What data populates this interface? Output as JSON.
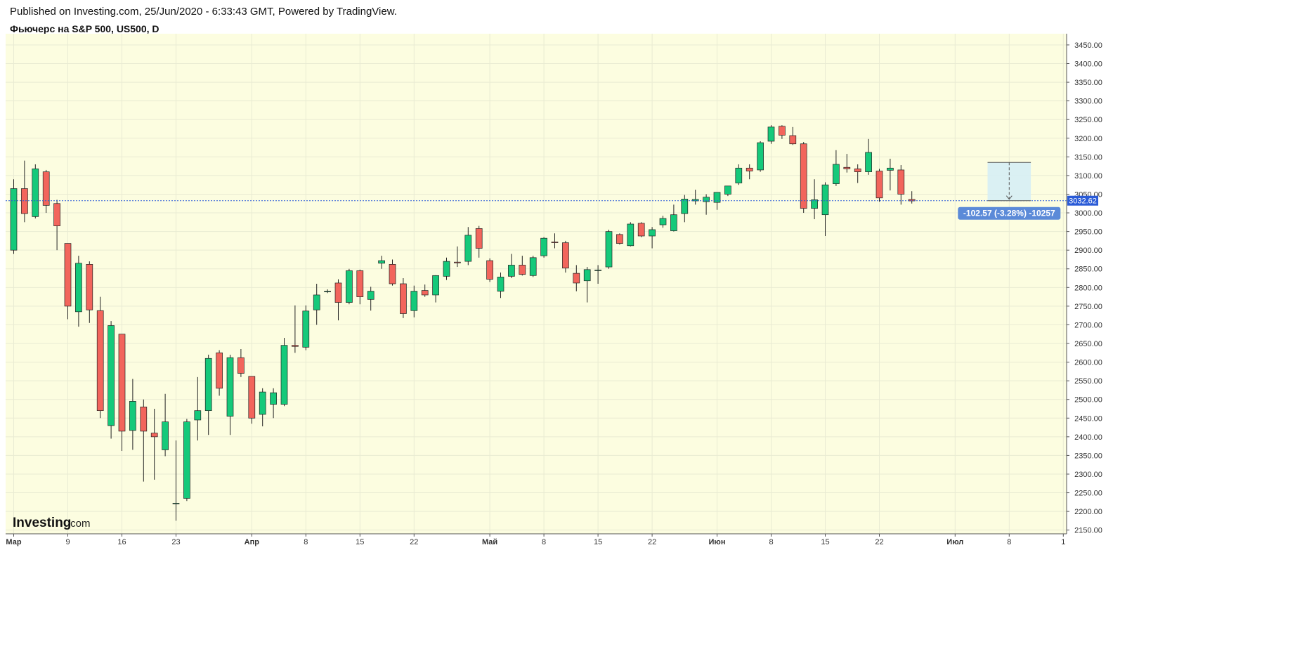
{
  "header": {
    "published": "Published on Investing.com, 25/Jun/2020 - 6:33:43 GMT, Powered by TradingView.",
    "symbol": "Фьючерс на S&P 500, US500, D"
  },
  "colors": {
    "background": "#fcfde0",
    "up": "#15c97a",
    "down": "#f2655c",
    "price_line": "#2a5bd7",
    "measure_fill": "#d6eef5",
    "measure_label": "#5b8ad8"
  },
  "current_price": {
    "value": 3032.62,
    "label": "3032.62"
  },
  "measure_label": "-102.57 (-3.28%) -10257",
  "watermark": {
    "brand": "Investing",
    "suffix": ".com"
  },
  "chart_data": {
    "type": "candlestick",
    "title": "Фьючерс на S&P 500, US500, D",
    "ylim": [
      2140,
      3480
    ],
    "grid": true,
    "y_ticks": [
      "3450.00",
      "3400.00",
      "3350.00",
      "3300.00",
      "3250.00",
      "3200.00",
      "3150.00",
      "3100.00",
      "3050.00",
      "3000.00",
      "2950.00",
      "2900.00",
      "2850.00",
      "2800.00",
      "2750.00",
      "2700.00",
      "2650.00",
      "2600.00",
      "2550.00",
      "2500.00",
      "2450.00",
      "2400.00",
      "2350.00",
      "2300.00",
      "2250.00",
      "2200.00",
      "2150.00"
    ],
    "x_ticks": [
      {
        "label": "Мар",
        "index": 0,
        "bold": true
      },
      {
        "label": "9",
        "index": 5,
        "bold": false
      },
      {
        "label": "16",
        "index": 10,
        "bold": false
      },
      {
        "label": "23",
        "index": 15,
        "bold": false
      },
      {
        "label": "Апр",
        "index": 22,
        "bold": true
      },
      {
        "label": "8",
        "index": 27,
        "bold": false
      },
      {
        "label": "15",
        "index": 32,
        "bold": false
      },
      {
        "label": "22",
        "index": 37,
        "bold": false
      },
      {
        "label": "Май",
        "index": 44,
        "bold": true
      },
      {
        "label": "8",
        "index": 49,
        "bold": false
      },
      {
        "label": "15",
        "index": 54,
        "bold": false
      },
      {
        "label": "22",
        "index": 59,
        "bold": false
      },
      {
        "label": "Июн",
        "index": 65,
        "bold": true
      },
      {
        "label": "8",
        "index": 70,
        "bold": false
      },
      {
        "label": "15",
        "index": 75,
        "bold": false
      },
      {
        "label": "22",
        "index": 80,
        "bold": false
      },
      {
        "label": "Июл",
        "index": 87,
        "bold": true
      },
      {
        "label": "8",
        "index": 92,
        "bold": false
      },
      {
        "label": "1",
        "index": 97,
        "bold": false
      }
    ],
    "candles": [
      {
        "o": 2900,
        "h": 3090,
        "l": 2890,
        "c": 3065
      },
      {
        "o": 3065,
        "h": 3140,
        "l": 2975,
        "c": 2998
      },
      {
        "o": 2990,
        "h": 3130,
        "l": 2985,
        "c": 3118
      },
      {
        "o": 3110,
        "h": 3115,
        "l": 3000,
        "c": 3020
      },
      {
        "o": 3025,
        "h": 3035,
        "l": 2900,
        "c": 2965
      },
      {
        "o": 2918,
        "h": 2918,
        "l": 2715,
        "c": 2750
      },
      {
        "o": 2735,
        "h": 2885,
        "l": 2695,
        "c": 2865
      },
      {
        "o": 2862,
        "h": 2870,
        "l": 2705,
        "c": 2740
      },
      {
        "o": 2738,
        "h": 2775,
        "l": 2450,
        "c": 2470
      },
      {
        "o": 2430,
        "h": 2710,
        "l": 2395,
        "c": 2698
      },
      {
        "o": 2675,
        "h": 2675,
        "l": 2362,
        "c": 2415
      },
      {
        "o": 2417,
        "h": 2555,
        "l": 2365,
        "c": 2495
      },
      {
        "o": 2480,
        "h": 2500,
        "l": 2280,
        "c": 2415
      },
      {
        "o": 2410,
        "h": 2475,
        "l": 2285,
        "c": 2400
      },
      {
        "o": 2365,
        "h": 2515,
        "l": 2348,
        "c": 2440
      },
      {
        "o": 2222,
        "h": 2390,
        "l": 2175,
        "c": 2222
      },
      {
        "o": 2235,
        "h": 2448,
        "l": 2228,
        "c": 2440
      },
      {
        "o": 2445,
        "h": 2560,
        "l": 2390,
        "c": 2470
      },
      {
        "o": 2470,
        "h": 2620,
        "l": 2405,
        "c": 2610
      },
      {
        "o": 2625,
        "h": 2632,
        "l": 2510,
        "c": 2530
      },
      {
        "o": 2455,
        "h": 2620,
        "l": 2405,
        "c": 2612
      },
      {
        "o": 2612,
        "h": 2635,
        "l": 2560,
        "c": 2570
      },
      {
        "o": 2562,
        "h": 2562,
        "l": 2435,
        "c": 2450
      },
      {
        "o": 2460,
        "h": 2530,
        "l": 2428,
        "c": 2520
      },
      {
        "o": 2487,
        "h": 2530,
        "l": 2450,
        "c": 2518
      },
      {
        "o": 2487,
        "h": 2665,
        "l": 2482,
        "c": 2645
      },
      {
        "o": 2645,
        "h": 2752,
        "l": 2625,
        "c": 2642
      },
      {
        "o": 2640,
        "h": 2752,
        "l": 2632,
        "c": 2737
      },
      {
        "o": 2740,
        "h": 2810,
        "l": 2700,
        "c": 2780
      },
      {
        "o": 2790,
        "h": 2795,
        "l": 2785,
        "c": 2790
      },
      {
        "o": 2812,
        "h": 2822,
        "l": 2712,
        "c": 2760
      },
      {
        "o": 2760,
        "h": 2850,
        "l": 2755,
        "c": 2845
      },
      {
        "o": 2845,
        "h": 2848,
        "l": 2755,
        "c": 2775
      },
      {
        "o": 2768,
        "h": 2802,
        "l": 2738,
        "c": 2790
      },
      {
        "o": 2865,
        "h": 2885,
        "l": 2850,
        "c": 2872
      },
      {
        "o": 2862,
        "h": 2875,
        "l": 2805,
        "c": 2810
      },
      {
        "o": 2810,
        "h": 2825,
        "l": 2718,
        "c": 2730
      },
      {
        "o": 2738,
        "h": 2805,
        "l": 2720,
        "c": 2790
      },
      {
        "o": 2792,
        "h": 2808,
        "l": 2775,
        "c": 2780
      },
      {
        "o": 2780,
        "h": 2833,
        "l": 2760,
        "c": 2832
      },
      {
        "o": 2830,
        "h": 2880,
        "l": 2820,
        "c": 2870
      },
      {
        "o": 2868,
        "h": 2910,
        "l": 2855,
        "c": 2866
      },
      {
        "o": 2870,
        "h": 2962,
        "l": 2860,
        "c": 2940
      },
      {
        "o": 2958,
        "h": 2965,
        "l": 2880,
        "c": 2905
      },
      {
        "o": 2872,
        "h": 2878,
        "l": 2815,
        "c": 2822
      },
      {
        "o": 2790,
        "h": 2840,
        "l": 2772,
        "c": 2828
      },
      {
        "o": 2830,
        "h": 2890,
        "l": 2825,
        "c": 2860
      },
      {
        "o": 2860,
        "h": 2885,
        "l": 2832,
        "c": 2835
      },
      {
        "o": 2832,
        "h": 2885,
        "l": 2828,
        "c": 2880
      },
      {
        "o": 2885,
        "h": 2935,
        "l": 2880,
        "c": 2932
      },
      {
        "o": 2922,
        "h": 2945,
        "l": 2905,
        "c": 2920
      },
      {
        "o": 2920,
        "h": 2925,
        "l": 2840,
        "c": 2852
      },
      {
        "o": 2838,
        "h": 2860,
        "l": 2790,
        "c": 2812
      },
      {
        "o": 2818,
        "h": 2855,
        "l": 2760,
        "c": 2848
      },
      {
        "o": 2847,
        "h": 2860,
        "l": 2810,
        "c": 2847
      },
      {
        "o": 2855,
        "h": 2955,
        "l": 2850,
        "c": 2950
      },
      {
        "o": 2942,
        "h": 2945,
        "l": 2915,
        "c": 2918
      },
      {
        "o": 2912,
        "h": 2975,
        "l": 2910,
        "c": 2970
      },
      {
        "o": 2972,
        "h": 2975,
        "l": 2935,
        "c": 2938
      },
      {
        "o": 2938,
        "h": 2962,
        "l": 2905,
        "c": 2955
      },
      {
        "o": 2968,
        "h": 2992,
        "l": 2960,
        "c": 2985
      },
      {
        "o": 2952,
        "h": 3022,
        "l": 2950,
        "c": 2995
      },
      {
        "o": 2998,
        "h": 3048,
        "l": 2975,
        "c": 3037
      },
      {
        "o": 3032,
        "h": 3062,
        "l": 3022,
        "c": 3036
      },
      {
        "o": 3030,
        "h": 3050,
        "l": 2995,
        "c": 3042
      },
      {
        "o": 3028,
        "h": 3052,
        "l": 3008,
        "c": 3055
      },
      {
        "o": 3050,
        "h": 3072,
        "l": 3045,
        "c": 3072
      },
      {
        "o": 3080,
        "h": 3130,
        "l": 3075,
        "c": 3120
      },
      {
        "o": 3120,
        "h": 3130,
        "l": 3090,
        "c": 3112
      },
      {
        "o": 3115,
        "h": 3192,
        "l": 3110,
        "c": 3188
      },
      {
        "o": 3192,
        "h": 3235,
        "l": 3185,
        "c": 3230
      },
      {
        "o": 3232,
        "h": 3235,
        "l": 3198,
        "c": 3208
      },
      {
        "o": 3207,
        "h": 3230,
        "l": 3182,
        "c": 3185
      },
      {
        "o": 3185,
        "h": 3190,
        "l": 3000,
        "c": 3012
      },
      {
        "o": 3012,
        "h": 3090,
        "l": 2983,
        "c": 3035
      },
      {
        "o": 2995,
        "h": 3082,
        "l": 2938,
        "c": 3075
      },
      {
        "o": 3078,
        "h": 3168,
        "l": 3072,
        "c": 3130
      },
      {
        "o": 3122,
        "h": 3158,
        "l": 3108,
        "c": 3118
      },
      {
        "o": 3118,
        "h": 3130,
        "l": 3080,
        "c": 3110
      },
      {
        "o": 3110,
        "h": 3198,
        "l": 3102,
        "c": 3162
      },
      {
        "o": 3112,
        "h": 3118,
        "l": 3030,
        "c": 3040
      },
      {
        "o": 3114,
        "h": 3145,
        "l": 3060,
        "c": 3120
      },
      {
        "o": 3115,
        "h": 3128,
        "l": 3022,
        "c": 3050
      },
      {
        "o": 3036,
        "h": 3058,
        "l": 3025,
        "c": 3032
      }
    ],
    "measure": {
      "from": 3135.19,
      "to": 3032.62,
      "start_index": 90,
      "end_index": 94
    }
  }
}
